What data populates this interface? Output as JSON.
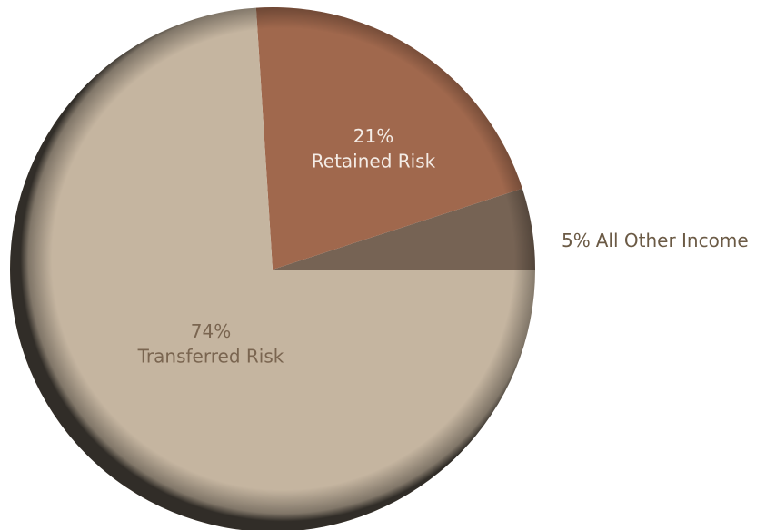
{
  "chart_data": {
    "type": "pie",
    "categories": [
      "All Other Income",
      "Retained Risk",
      "Transferred Risk"
    ],
    "values": [
      5,
      21,
      74
    ],
    "value_labels": [
      "5%",
      "21%",
      "74%"
    ],
    "colors": [
      "#766354",
      "#a0684d",
      "#c5b5a0"
    ]
  }
}
